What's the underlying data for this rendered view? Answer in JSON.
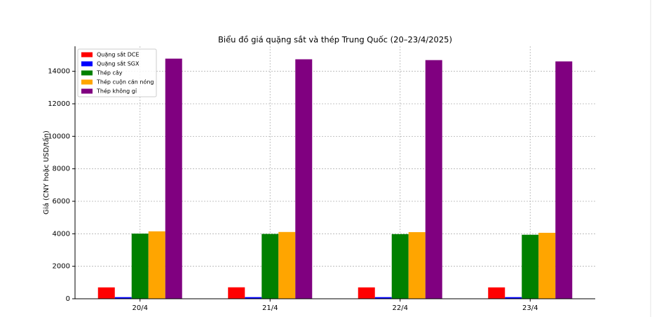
{
  "chart_data": {
    "type": "bar",
    "title": "Biểu đồ giá quặng sắt và thép Trung Quốc (20–23/4/2025)",
    "y_label": "Giá (CNY hoặc USD/tấn)",
    "categories": [
      "20/4",
      "21/4",
      "22/4",
      "23/4"
    ],
    "series": [
      {
        "name": "Quặng sắt DCE",
        "color": "#ff0000",
        "values": [
          700,
          705,
          700,
          700
        ]
      },
      {
        "name": "Quặng sắt SGX",
        "color": "#0000ff",
        "values": [
          100,
          101,
          100,
          100
        ]
      },
      {
        "name": "Thép cây",
        "color": "#008000",
        "values": [
          4010,
          3990,
          3980,
          3940
        ]
      },
      {
        "name": "Thép cuộn cán nóng",
        "color": "#ffa500",
        "values": [
          4150,
          4110,
          4100,
          4060
        ]
      },
      {
        "name": "Thép không gỉ",
        "color": "#800080",
        "values": [
          14780,
          14740,
          14690,
          14610
        ]
      }
    ],
    "ylim": [
      0,
      15540
    ],
    "yticks": [
      0,
      2000,
      4000,
      6000,
      8000,
      10000,
      12000,
      14000
    ],
    "grid": true,
    "legend": "upper left"
  }
}
